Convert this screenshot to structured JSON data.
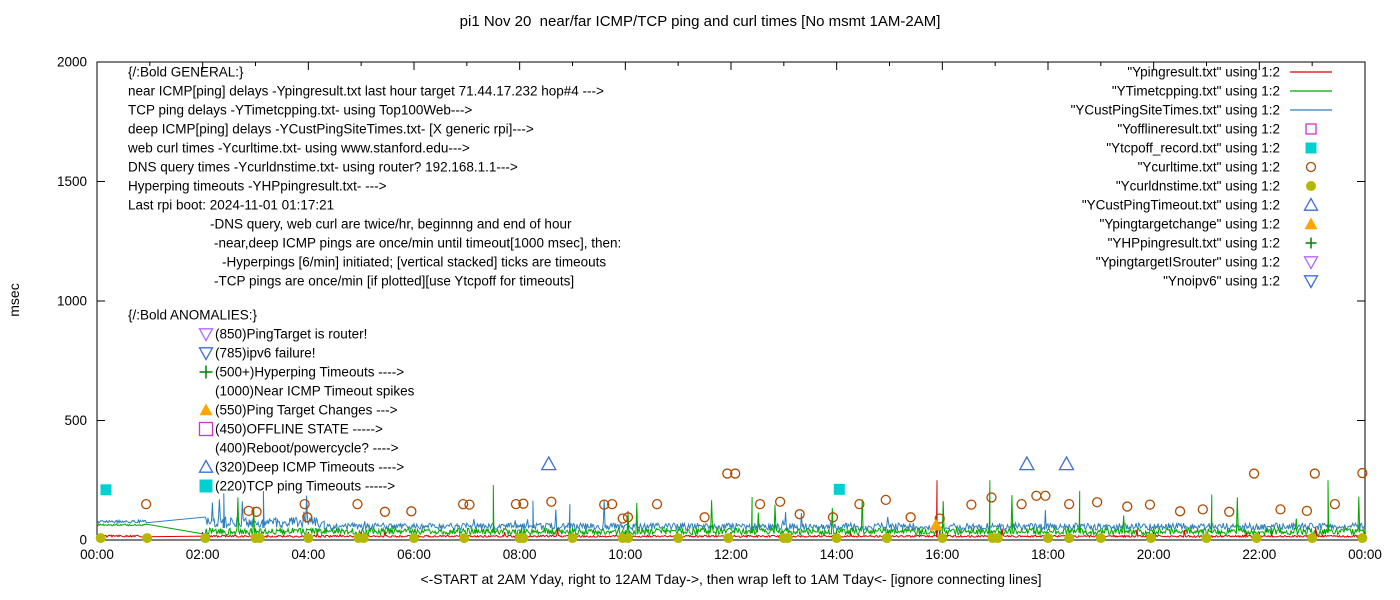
{
  "chart_data": {
    "type": "line",
    "title": "pi1 Nov 20  near/far ICMP/TCP ping and curl times [No msmt 1AM-2AM]",
    "xlabel": "<-START at 2AM Yday, right to 12AM Tday->, then wrap left to 1AM Tday<- [ignore connecting lines]",
    "ylabel": "msec",
    "xlim": [
      0,
      24
    ],
    "ylim": [
      0,
      2000
    ],
    "yticks": [
      0,
      500,
      1000,
      1500,
      2000
    ],
    "xtick_labels": [
      "00:00",
      "02:00",
      "04:00",
      "06:00",
      "08:00",
      "10:00",
      "12:00",
      "14:00",
      "16:00",
      "18:00",
      "20:00",
      "22:00",
      "00:00"
    ],
    "grid": false,
    "legend_position": "top-right",
    "no_measurement_gap_hours": [
      1,
      2
    ],
    "legend": [
      {
        "label": "\"Ypingresult.txt\" using 1:2",
        "sample": "line",
        "color": "#e00000"
      },
      {
        "label": "\"YTimetcpping.txt\" using 1:2",
        "sample": "line",
        "color": "#00a800"
      },
      {
        "label": "\"YCustPingSiteTimes.txt\" using 1:2",
        "sample": "line",
        "color": "#2e7fbe"
      },
      {
        "label": "\"Yofflineresult.txt\" using 1:2",
        "sample": "square-open",
        "color": "#cc33cc",
        "s": 5
      },
      {
        "label": "\"Ytcpoff_record.txt\" using 1:2",
        "sample": "square-filled",
        "color": "#00d0d0",
        "s": 5.5
      },
      {
        "label": "\"Ycurltime.txt\" using 1:2",
        "sample": "circle-open",
        "color": "#b04a00",
        "s": 4.5
      },
      {
        "label": "\"Ycurldnstime.txt\" using 1:2",
        "sample": "circle-filled",
        "color": "#b4b800",
        "s": 5
      },
      {
        "label": "\"YCustPingTimeout.txt\" using 1:2",
        "sample": "tri-up-open",
        "color": "#3b6fd4",
        "s": 6.5
      },
      {
        "label": "\"Ypingtargetchange\" using 1:2",
        "sample": "tri-up-filled",
        "color": "#ffa500",
        "s": 6.5
      },
      {
        "label": "\"YHPpingresult.txt\" using 1:2",
        "sample": "plus",
        "color": "#008000",
        "s": 5.5
      },
      {
        "label": "\"YpingtargetISrouter\" using 1:2",
        "sample": "tri-down-open",
        "color": "#b866ff",
        "s": 6.5
      },
      {
        "label": "\"Ynoipv6\" using 1:2",
        "sample": "tri-down-open",
        "color": "#3b6fd4",
        "s": 6.5
      }
    ],
    "series": [
      {
        "name": "YCustPingSiteTimes",
        "color": "#2e7fbe",
        "segments": [
          {
            "x0": 0,
            "x1": 0.95,
            "base": 75,
            "noise": 12,
            "spike_p": 0.005,
            "spike_max": 20
          },
          {
            "x0": 2.05,
            "x1": 4.3,
            "base": 65,
            "noise": 45,
            "spike_p": 0.05,
            "spike_max": 120
          },
          {
            "x0": 4.3,
            "x1": 24,
            "base": 50,
            "noise": 30,
            "spike_p": 0.012,
            "spike_max": 110
          }
        ],
        "events": [
          [
            2.4,
            195
          ],
          [
            3.15,
            205
          ],
          [
            8.25,
            165
          ],
          [
            8.95,
            150
          ]
        ]
      },
      {
        "name": "YTimetcpping",
        "color": "#00a800",
        "segments": [
          {
            "x0": 0,
            "x1": 0.95,
            "base": 62,
            "noise": 8,
            "spike_p": 0.01,
            "spike_max": 30
          },
          {
            "x0": 2.05,
            "x1": 24,
            "base": 30,
            "noise": 28,
            "spike_p": 0.02,
            "spike_max": 150
          }
        ],
        "events": [
          [
            7.5,
            230
          ],
          [
            12.4,
            180
          ],
          [
            16.9,
            250
          ],
          [
            18.6,
            205
          ],
          [
            21.1,
            190
          ],
          [
            23.3,
            250
          ]
        ]
      },
      {
        "name": "Ypingresult",
        "color": "#e00000",
        "segments": [
          {
            "x0": 0,
            "x1": 0.95,
            "base": 15,
            "noise": 8,
            "spike_p": 0.01,
            "spike_max": 30
          },
          {
            "x0": 2.05,
            "x1": 24,
            "base": 14,
            "noise": 8,
            "spike_p": 0.01,
            "spike_max": 40
          }
        ],
        "events": [
          [
            15.9,
            250
          ]
        ]
      }
    ],
    "points": [
      {
        "name": "curl-times",
        "marker": "circle-open",
        "color": "#b04a00",
        "s": 4.5,
        "data": [
          [
            0.93,
            150
          ],
          [
            2.87,
            122
          ],
          [
            3.02,
            118
          ],
          [
            3.93,
            150
          ],
          [
            3.98,
            95
          ],
          [
            4.93,
            150
          ],
          [
            5.45,
            118
          ],
          [
            5.95,
            120
          ],
          [
            6.93,
            150
          ],
          [
            7.05,
            148
          ],
          [
            7.93,
            150
          ],
          [
            8.07,
            152
          ],
          [
            8.6,
            160
          ],
          [
            9.6,
            148
          ],
          [
            9.75,
            150
          ],
          [
            9.95,
            90
          ],
          [
            10.05,
            95
          ],
          [
            10.6,
            150
          ],
          [
            11.5,
            95
          ],
          [
            11.93,
            278
          ],
          [
            12.08,
            278
          ],
          [
            12.55,
            150
          ],
          [
            12.93,
            160
          ],
          [
            13.3,
            108
          ],
          [
            13.93,
            95
          ],
          [
            14.43,
            150
          ],
          [
            14.93,
            168
          ],
          [
            15.4,
            95
          ],
          [
            15.95,
            90
          ],
          [
            16.55,
            148
          ],
          [
            16.93,
            178
          ],
          [
            17.5,
            150
          ],
          [
            17.78,
            185
          ],
          [
            17.95,
            185
          ],
          [
            18.4,
            150
          ],
          [
            18.93,
            158
          ],
          [
            19.5,
            140
          ],
          [
            19.93,
            148
          ],
          [
            20.5,
            120
          ],
          [
            20.93,
            128
          ],
          [
            21.43,
            118
          ],
          [
            21.9,
            278
          ],
          [
            22.4,
            128
          ],
          [
            22.9,
            122
          ],
          [
            23.05,
            278
          ],
          [
            23.43,
            150
          ],
          [
            23.95,
            280
          ]
        ]
      },
      {
        "name": "dns-times",
        "marker": "circle-filled",
        "color": "#b4b800",
        "s": 5,
        "data": [
          [
            0.07,
            8
          ],
          [
            0.95,
            8
          ],
          [
            2.05,
            8
          ],
          [
            3.0,
            8
          ],
          [
            3.08,
            8
          ],
          [
            4.0,
            8
          ],
          [
            4.95,
            8
          ],
          [
            5.05,
            8
          ],
          [
            6.0,
            8
          ],
          [
            6.95,
            8
          ],
          [
            8.0,
            8
          ],
          [
            8.07,
            8
          ],
          [
            9.0,
            8
          ],
          [
            9.95,
            8
          ],
          [
            10.05,
            8
          ],
          [
            11.0,
            8
          ],
          [
            11.95,
            8
          ],
          [
            13.0,
            8
          ],
          [
            13.07,
            8
          ],
          [
            14.0,
            8
          ],
          [
            14.95,
            8
          ],
          [
            16.0,
            8
          ],
          [
            16.95,
            8
          ],
          [
            17.05,
            8
          ],
          [
            18.0,
            8
          ],
          [
            18.4,
            8
          ],
          [
            19.0,
            8
          ],
          [
            19.95,
            8
          ],
          [
            21.0,
            8
          ],
          [
            21.95,
            8
          ],
          [
            23.0,
            8
          ],
          [
            23.95,
            8
          ]
        ]
      },
      {
        "name": "tcp-ping-timeouts",
        "marker": "square-filled",
        "color": "#00d0d0",
        "s": 5.5,
        "data": [
          [
            0.17,
            210
          ],
          [
            14.05,
            212
          ]
        ]
      },
      {
        "name": "deep-icmp-timeouts",
        "marker": "tri-up-open",
        "color": "#3b6fd4",
        "s": 7,
        "data": [
          [
            8.55,
            318
          ],
          [
            17.6,
            318
          ],
          [
            18.35,
            318
          ]
        ]
      },
      {
        "name": "ping-target-change",
        "marker": "tri-up-filled",
        "color": "#ffa500",
        "s": 6.5,
        "data": [
          [
            15.88,
            62
          ]
        ]
      }
    ],
    "annotations": {
      "general": [
        {
          "text": "{/:Bold GENERAL:}",
          "dx": 0
        },
        {
          "text": "near ICMP[ping] delays -Ypingresult.txt last hour target 71.44.17.232 hop#4 --->",
          "dx": 0
        },
        {
          "text": "TCP ping delays -YTimetcpping.txt- using Top100Web--->",
          "dx": 0
        },
        {
          "text": "deep ICMP[ping] delays -YCustPingSiteTimes.txt- [X generic rpi]--->",
          "dx": 0
        },
        {
          "text": "web curl times -Ycurltime.txt- using www.stanford.edu--->",
          "dx": 0
        },
        {
          "text": "DNS query times -Ycurldnstime.txt- using router? 192.168.1.1--->",
          "dx": 0
        },
        {
          "text": "Hyperping timeouts -YHPpingresult.txt- --->",
          "dx": 0
        },
        {
          "text": "Last rpi boot: 2024-11-01 01:17:21",
          "dx": 0
        },
        {
          "text": "-DNS query, web curl are twice/hr, beginnng and end of hour",
          "dx": 82
        },
        {
          "text": "-near,deep ICMP pings are once/min until timeout[1000 msec], then:",
          "dx": 86
        },
        {
          "text": "-Hyperpings [6/min] initiated; [vertical stacked] ticks are timeouts",
          "dx": 94
        },
        {
          "text": "-TCP pings are once/min [if plotted][use Ytcpoff for timeouts]",
          "dx": 86
        }
      ],
      "anomalies_header": "{/:Bold ANOMALIES:}",
      "anomalies": [
        {
          "marker": "tri-down-open",
          "color": "#b866ff",
          "text": "(850)PingTarget is router!"
        },
        {
          "marker": "tri-down-open",
          "color": "#3b6fd4",
          "text": "(785)ipv6 failure!"
        },
        {
          "marker": "plus",
          "color": "#008000",
          "text": "(500+)Hyperping Timeouts ---->"
        },
        {
          "marker": null,
          "color": null,
          "text": "(1000)Near ICMP Timeout spikes"
        },
        {
          "marker": "tri-up-filled",
          "color": "#ffa500",
          "text": "(550)Ping Target Changes --->"
        },
        {
          "marker": "square-open",
          "color": "#cc33cc",
          "text": "(450)OFFLINE STATE ----->"
        },
        {
          "marker": null,
          "color": null,
          "text": "(400)Reboot/powercycle? ---->"
        },
        {
          "marker": "tri-up-open",
          "color": "#3b6fd4",
          "text": "(320)Deep ICMP Timeouts ---->"
        },
        {
          "marker": "square-filled",
          "color": "#00d0d0",
          "text": "(220)TCP ping Timeouts ----->"
        }
      ]
    }
  }
}
